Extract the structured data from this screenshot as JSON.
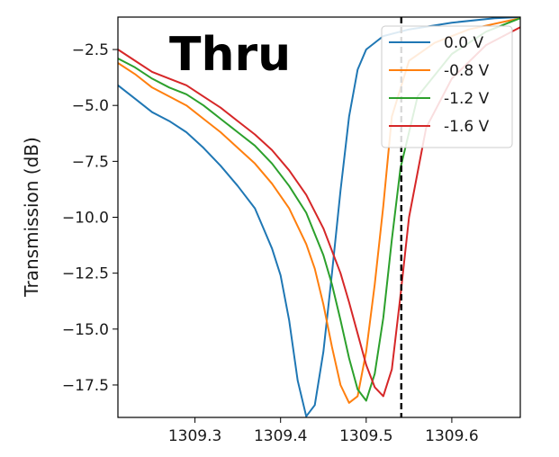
{
  "chart_data": {
    "type": "line",
    "title": "",
    "overlay_label": "Thru",
    "xlabel": "",
    "ylabel": "Transmission (dB)",
    "xlim": [
      1309.21,
      1309.68
    ],
    "ylim": [
      -18.95,
      -1.05
    ],
    "x_ticks": [
      1309.3,
      1309.4,
      1309.5,
      1309.6
    ],
    "x_tick_labels": [
      "1309.3",
      "1309.4",
      "1309.5",
      "1309.6"
    ],
    "y_ticks": [
      -2.5,
      -5.0,
      -7.5,
      -10.0,
      -12.5,
      -15.0,
      -17.5
    ],
    "y_tick_labels": [
      "−2.5",
      "−5.0",
      "−7.5",
      "−10.0",
      "−12.5",
      "−15.0",
      "−17.5"
    ],
    "grid": false,
    "legend_position": "top-right",
    "vertical_line": {
      "x": 1309.541,
      "style": "dashed",
      "color": "#000000"
    },
    "series": [
      {
        "name": "0.0 V",
        "color": "#1f77b4",
        "x": [
          1309.21,
          1309.23,
          1309.25,
          1309.27,
          1309.29,
          1309.31,
          1309.33,
          1309.35,
          1309.37,
          1309.38,
          1309.39,
          1309.4,
          1309.41,
          1309.42,
          1309.43,
          1309.44,
          1309.45,
          1309.46,
          1309.47,
          1309.48,
          1309.49,
          1309.5,
          1309.52,
          1309.55,
          1309.6,
          1309.65,
          1309.68
        ],
        "y": [
          -4.1,
          -4.7,
          -5.3,
          -5.7,
          -6.2,
          -6.9,
          -7.7,
          -8.6,
          -9.6,
          -10.5,
          -11.4,
          -12.6,
          -14.6,
          -17.3,
          -18.9,
          -18.4,
          -16.0,
          -12.5,
          -8.8,
          -5.5,
          -3.4,
          -2.5,
          -1.9,
          -1.6,
          -1.3,
          -1.1,
          -1.05
        ]
      },
      {
        "name": "-0.8 V",
        "color": "#ff7f0e",
        "x": [
          1309.21,
          1309.23,
          1309.25,
          1309.27,
          1309.29,
          1309.31,
          1309.33,
          1309.35,
          1309.37,
          1309.39,
          1309.41,
          1309.43,
          1309.44,
          1309.45,
          1309.46,
          1309.47,
          1309.48,
          1309.49,
          1309.5,
          1309.51,
          1309.52,
          1309.53,
          1309.55,
          1309.58,
          1309.62,
          1309.68
        ],
        "y": [
          -3.1,
          -3.6,
          -4.2,
          -4.6,
          -5.0,
          -5.6,
          -6.2,
          -6.9,
          -7.6,
          -8.5,
          -9.6,
          -11.2,
          -12.3,
          -13.9,
          -15.8,
          -17.5,
          -18.3,
          -18.0,
          -16.0,
          -13.0,
          -9.5,
          -5.5,
          -3.0,
          -2.2,
          -1.6,
          -1.1
        ]
      },
      {
        "name": "-1.2 V",
        "color": "#2ca02c",
        "x": [
          1309.21,
          1309.23,
          1309.25,
          1309.27,
          1309.29,
          1309.31,
          1309.33,
          1309.35,
          1309.37,
          1309.39,
          1309.41,
          1309.43,
          1309.45,
          1309.46,
          1309.47,
          1309.48,
          1309.49,
          1309.5,
          1309.51,
          1309.52,
          1309.53,
          1309.54,
          1309.56,
          1309.6,
          1309.64,
          1309.68
        ],
        "y": [
          -2.9,
          -3.3,
          -3.8,
          -4.2,
          -4.5,
          -5.0,
          -5.6,
          -6.2,
          -6.8,
          -7.6,
          -8.6,
          -9.8,
          -11.7,
          -13.0,
          -14.6,
          -16.3,
          -17.7,
          -18.2,
          -17.0,
          -14.5,
          -11.0,
          -7.8,
          -4.6,
          -2.7,
          -1.7,
          -1.1
        ]
      },
      {
        "name": "-1.6 V",
        "color": "#d62728",
        "x": [
          1309.21,
          1309.23,
          1309.25,
          1309.27,
          1309.29,
          1309.31,
          1309.33,
          1309.35,
          1309.37,
          1309.39,
          1309.41,
          1309.43,
          1309.45,
          1309.47,
          1309.48,
          1309.49,
          1309.5,
          1309.51,
          1309.52,
          1309.53,
          1309.54,
          1309.55,
          1309.57,
          1309.6,
          1309.64,
          1309.68
        ],
        "y": [
          -2.5,
          -3.0,
          -3.5,
          -3.8,
          -4.1,
          -4.6,
          -5.1,
          -5.7,
          -6.3,
          -7.0,
          -7.9,
          -9.0,
          -10.5,
          -12.5,
          -13.8,
          -15.2,
          -16.6,
          -17.6,
          -18.0,
          -16.8,
          -13.5,
          -10.0,
          -6.0,
          -3.8,
          -2.3,
          -1.5
        ]
      }
    ]
  }
}
